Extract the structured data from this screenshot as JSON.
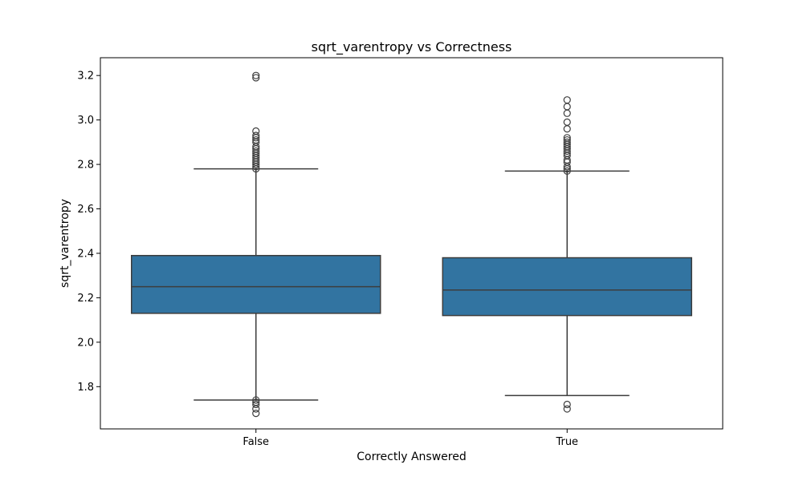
{
  "chart_data": {
    "type": "box",
    "title": "sqrt_varentropy vs Correctness",
    "xlabel": "Correctly Answered",
    "ylabel": "sqrt_varentropy",
    "ylim": [
      1.61,
      3.28
    ],
    "yticks": [
      1.8,
      2.0,
      2.2,
      2.4,
      2.6,
      2.8,
      3.0,
      3.2
    ],
    "ytick_labels": [
      "1.8",
      "2.0",
      "2.2",
      "2.4",
      "2.6",
      "2.8",
      "3.0",
      "3.2"
    ],
    "grid": false,
    "categories": [
      "False",
      "True"
    ],
    "boxes": [
      {
        "category": "False",
        "whisker_low": 1.74,
        "q1": 2.13,
        "median": 2.25,
        "q3": 2.39,
        "whisker_high": 2.78,
        "outliers": [
          1.68,
          1.7,
          1.72,
          1.73,
          1.74,
          2.78,
          2.79,
          2.8,
          2.81,
          2.82,
          2.83,
          2.84,
          2.85,
          2.86,
          2.87,
          2.88,
          2.9,
          2.91,
          2.92,
          2.93,
          2.95,
          3.19,
          3.2
        ]
      },
      {
        "category": "True",
        "whisker_low": 1.76,
        "q1": 2.12,
        "median": 2.235,
        "q3": 2.38,
        "whisker_high": 2.77,
        "outliers": [
          1.7,
          1.72,
          2.77,
          2.78,
          2.79,
          2.81,
          2.82,
          2.84,
          2.85,
          2.86,
          2.87,
          2.88,
          2.89,
          2.9,
          2.91,
          2.92,
          2.96,
          2.99,
          3.03,
          3.06,
          3.09
        ]
      }
    ],
    "colors": {
      "box_fill": "#3274a1",
      "line": "#3d3d3d",
      "axis": "#000000"
    }
  }
}
